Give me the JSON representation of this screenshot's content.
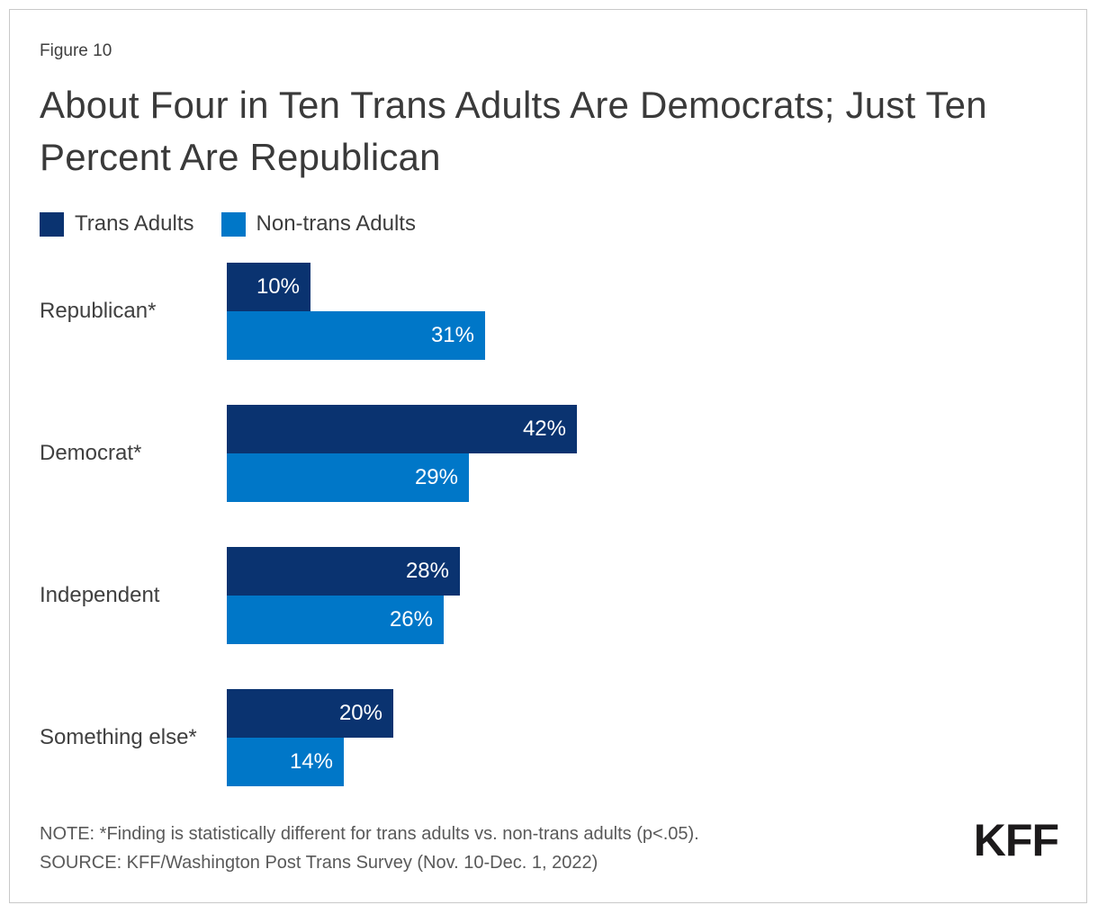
{
  "figure_label": "Figure 10",
  "title": "About Four in Ten Trans Adults Are Democrats; Just Ten Percent Are Republican",
  "legend": [
    {
      "label": "Trans Adults",
      "color": "#0a3370"
    },
    {
      "label": "Non-trans Adults",
      "color": "#0077c8"
    }
  ],
  "chart_data": {
    "type": "bar",
    "orientation": "horizontal",
    "title": "About Four in Ten Trans Adults Are Democrats; Just Ten Percent Are Republican",
    "categories": [
      "Republican*",
      "Democrat*",
      "Independent",
      "Something else*"
    ],
    "series": [
      {
        "name": "Trans Adults",
        "color": "#0a3370",
        "values": [
          10,
          42,
          28,
          20
        ]
      },
      {
        "name": "Non-trans Adults",
        "color": "#0077c8",
        "values": [
          31,
          29,
          26,
          14
        ]
      }
    ],
    "value_suffix": "%",
    "value_label_position": "inside-end",
    "value_label_color": "#ffffff",
    "xlim": [
      0,
      45
    ],
    "grid": false,
    "legend_position": "top-left"
  },
  "note": "NOTE: *Finding is statistically different for trans adults vs. non-trans adults (p<.05).",
  "source": "SOURCE: KFF/Washington Post Trans Survey (Nov. 10-Dec. 1, 2022)",
  "logo_text": "KFF"
}
